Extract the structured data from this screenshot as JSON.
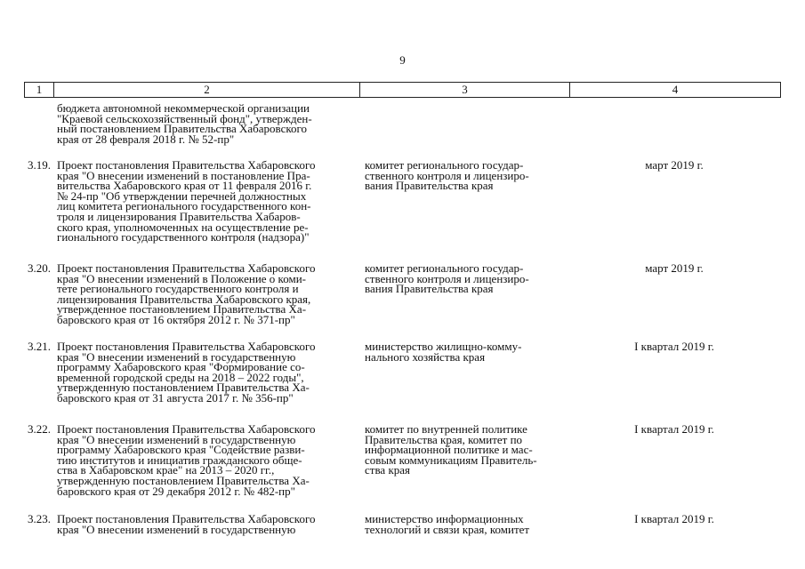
{
  "page_number": "9",
  "header": [
    "1",
    "2",
    "3",
    "4"
  ],
  "continuation": [
    "бюджета автономной некоммерческой организации",
    "\"Краевой сельскохозяйственный фонд\", утвержден-",
    "ный постановлением Правительства Хабаровского",
    "края от 28 февраля 2018 г. № 52-пр\""
  ],
  "rows": [
    {
      "num": "3.19.",
      "text": [
        "Проект постановления Правительства Хабаровского",
        "края \"О внесении изменений в постановление Пра-",
        "вительства Хабаровского края от 11 февраля 2016 г.",
        "№ 24-пр \"Об утверждении перечней должностных",
        "лиц комитета регионального государственного кон-",
        "троля и лицензирования Правительства Хабаров-",
        "ского края, уполномоченных на осуществление ре-",
        "гионального государственного контроля (надзора)\""
      ],
      "responsible": [
        "комитет регионального государ-",
        "ственного контроля и лицензиро-",
        "вания Правительства края"
      ],
      "term": "март 2019 г."
    },
    {
      "num": "3.20.",
      "text": [
        "Проект постановления Правительства Хабаровского",
        "края \"О внесении изменений в Положение о коми-",
        "тете регионального государственного контроля и",
        "лицензирования Правительства Хабаровского края,",
        "утвержденное постановлением Правительства Ха-",
        "баровского края от 16 октября 2012 г. № 371-пр\""
      ],
      "responsible": [
        "комитет регионального государ-",
        "ственного контроля и лицензиро-",
        "вания Правительства края"
      ],
      "term": "март 2019 г."
    },
    {
      "num": "3.21.",
      "text": [
        "Проект постановления Правительства Хабаровского",
        "края \"О внесении изменений в государственную",
        "программу Хабаровского края \"Формирование со-",
        "временной городской среды на 2018 – 2022 годы\",",
        "утвержденную постановлением Правительства Ха-",
        "баровского края от 31 августа 2017 г. № 356-пр\""
      ],
      "responsible": [
        "министерство жилищно-комму-",
        "нального хозяйства края"
      ],
      "term": "I квартал 2019 г."
    },
    {
      "num": "3.22.",
      "text": [
        "Проект постановления Правительства Хабаровского",
        "края \"О внесении изменений в государственную",
        "программу Хабаровского края \"Содействие разви-",
        "тию институтов и инициатив гражданского обще-",
        "ства в Хабаровском крае\" на 2013 – 2020 гг.,",
        "утвержденную постановлением Правительства Ха-",
        "баровского края от 29 декабря 2012 г. № 482-пр\""
      ],
      "responsible": [
        "комитет по внутренней политике",
        "Правительства края, комитет по",
        "информационной политике и мас-",
        "совым коммуникациям Правитель-",
        "ства края"
      ],
      "term": "I квартал 2019 г."
    },
    {
      "num": "3.23.",
      "text": [
        "Проект постановления Правительства Хабаровского",
        "края \"О внесении изменений в государственную"
      ],
      "responsible": [
        "министерство информационных",
        "технологий и связи края, комитет"
      ],
      "term": "I квартал 2019 г."
    }
  ]
}
